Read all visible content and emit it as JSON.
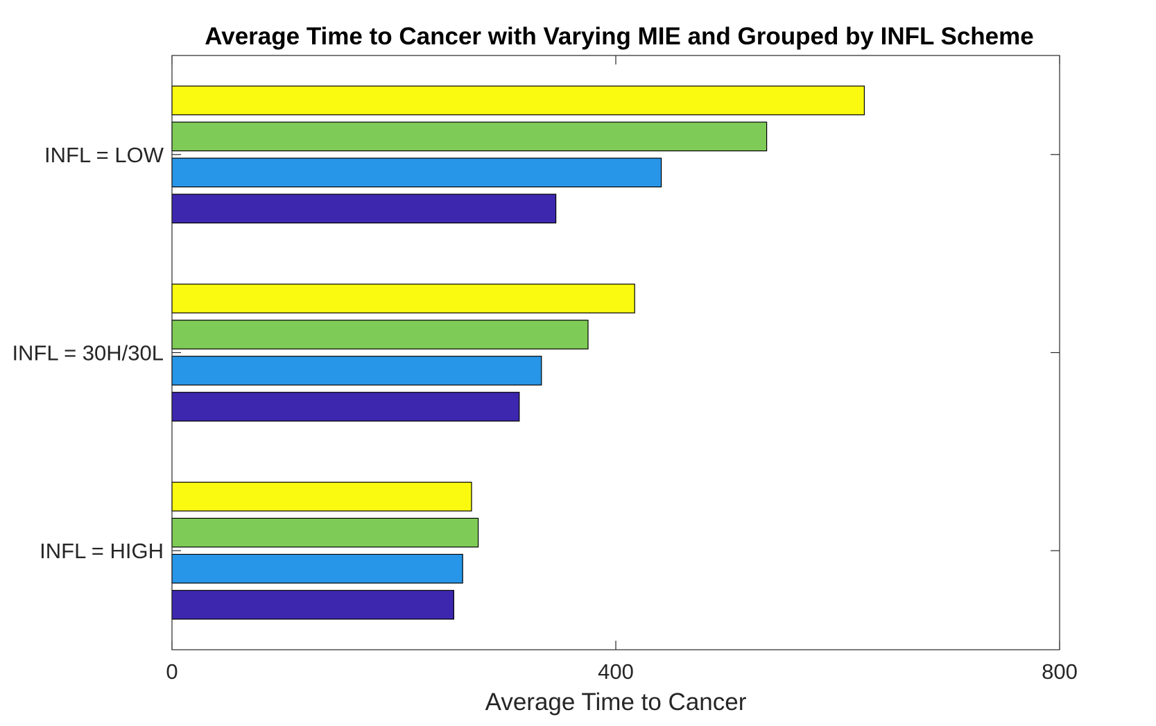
{
  "chart_data": {
    "type": "bar",
    "orientation": "horizontal",
    "title": "Average Time to Cancer with Varying MIE and Grouped by INFL Scheme",
    "xlabel": "Average Time to Cancer",
    "ylabel": "",
    "xlim": [
      0,
      800
    ],
    "xticks": [
      0,
      400,
      800
    ],
    "xtick_labels": [
      "0",
      "400",
      "800"
    ],
    "categories": [
      "INFL = LOW",
      "INFL = 30H/30L",
      "INFL = HIGH"
    ],
    "series": [
      {
        "color": "#f9fa0f",
        "values": [
          624,
          417,
          270
        ]
      },
      {
        "color": "#7fcb57",
        "values": [
          536,
          375,
          276
        ]
      },
      {
        "color": "#2896e8",
        "values": [
          441,
          333,
          262
        ]
      },
      {
        "color": "#3c27ae",
        "values": [
          346,
          313,
          254
        ]
      }
    ],
    "grid": false,
    "legend": null
  }
}
